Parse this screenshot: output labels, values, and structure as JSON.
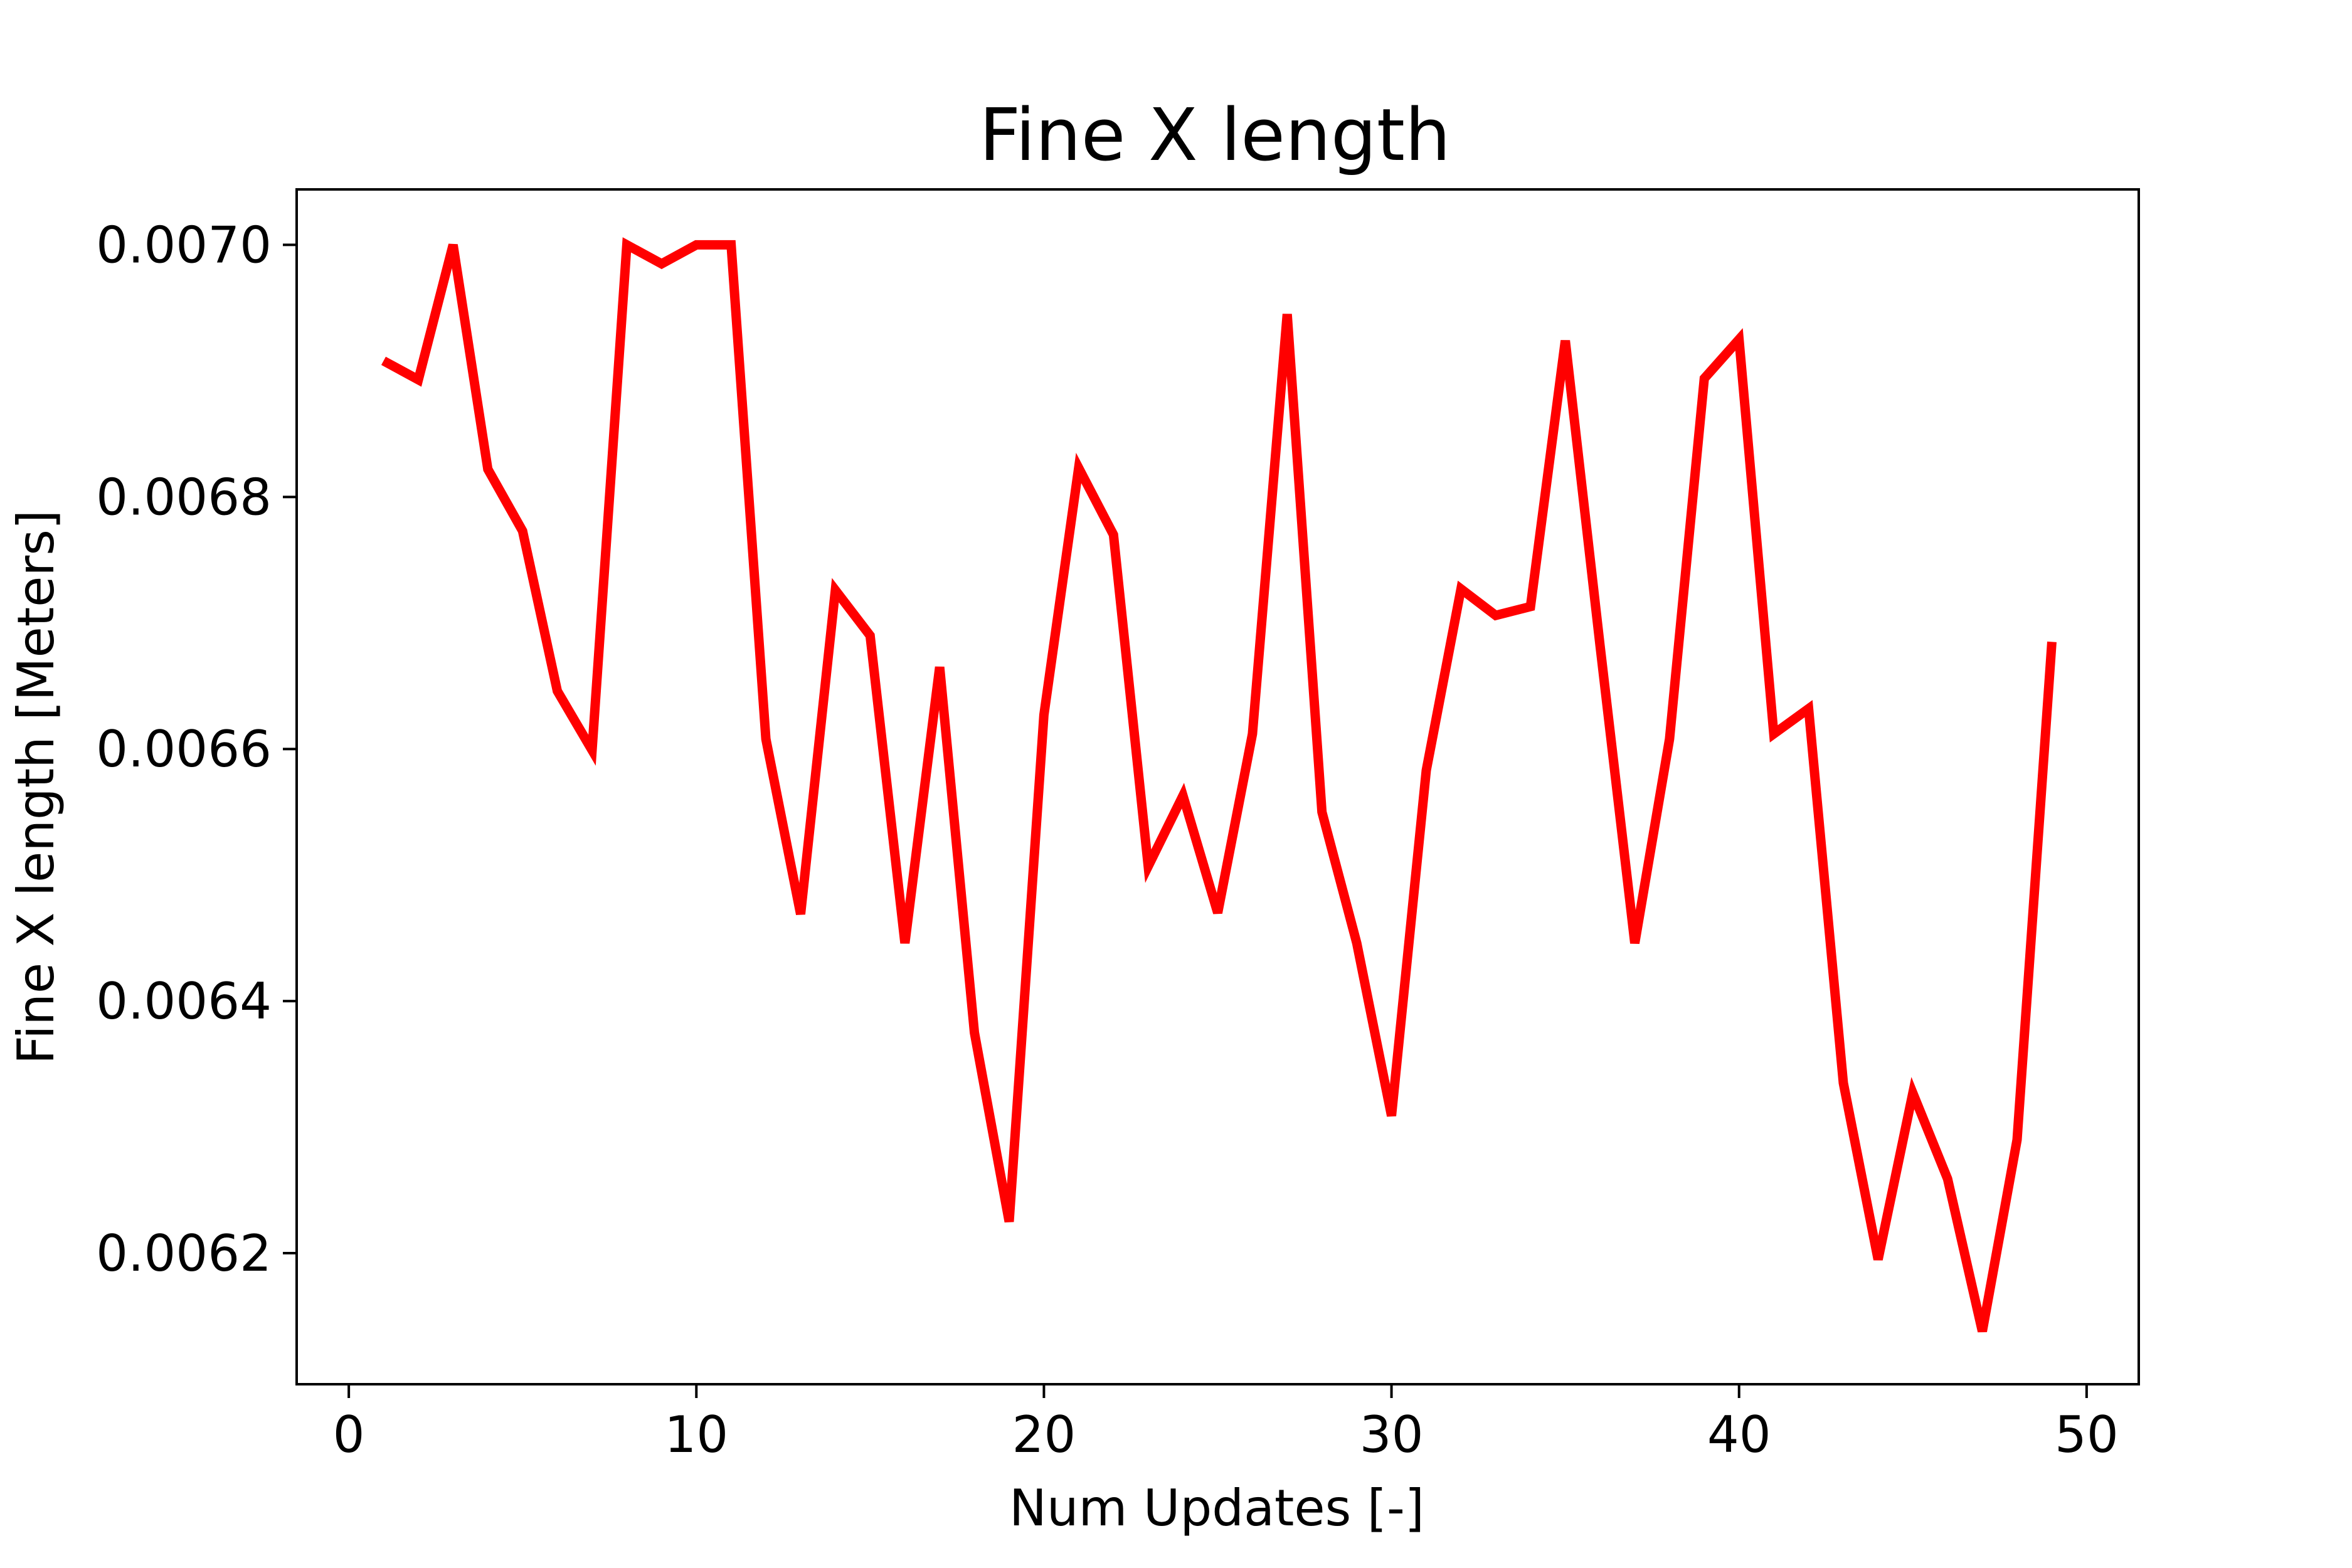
{
  "chart_data": {
    "type": "line",
    "title": "Fine X length",
    "xlabel": "Num Updates [-]",
    "ylabel": "Fine X length [Meters]",
    "xlim": [
      -1.5,
      51.5
    ],
    "ylim": [
      0.006096,
      0.007044
    ],
    "x_ticks": [
      0,
      10,
      20,
      30,
      40,
      50
    ],
    "x_tick_labels": [
      "0",
      "10",
      "20",
      "30",
      "40",
      "50"
    ],
    "y_ticks": [
      0.0062,
      0.0064,
      0.0066,
      0.0068,
      0.007
    ],
    "y_tick_labels": [
      "0.0062",
      "0.0064",
      "0.0066",
      "0.0068",
      "0.0070"
    ],
    "grid": false,
    "series": [
      {
        "color": "#ff0000",
        "x": [
          1,
          2,
          3,
          4,
          5,
          6,
          7,
          8,
          9,
          10,
          11,
          12,
          13,
          14,
          15,
          16,
          17,
          18,
          19,
          20,
          21,
          22,
          23,
          24,
          25,
          26,
          27,
          28,
          29,
          30,
          31,
          32,
          33,
          34,
          35,
          36,
          37,
          38,
          39,
          40,
          41,
          42,
          43,
          44,
          45,
          46,
          47,
          48,
          49
        ],
        "values": [
          0.006908,
          0.006893,
          0.007,
          0.006822,
          0.006773,
          0.006646,
          0.006599,
          0.007,
          0.006985,
          0.007,
          0.007,
          0.006608,
          0.006469,
          0.006726,
          0.00669,
          0.006446,
          0.006665,
          0.006375,
          0.006225,
          0.006627,
          0.006823,
          0.00677,
          0.006507,
          0.006563,
          0.00647,
          0.006612,
          0.006945,
          0.00655,
          0.006446,
          0.006309,
          0.006583,
          0.006727,
          0.006706,
          0.006713,
          0.006924,
          0.006682,
          0.006446,
          0.006608,
          0.006894,
          0.006925,
          0.006612,
          0.006632,
          0.006335,
          0.006195,
          0.006327,
          0.006259,
          0.006138,
          0.00629,
          0.006685
        ]
      }
    ]
  }
}
